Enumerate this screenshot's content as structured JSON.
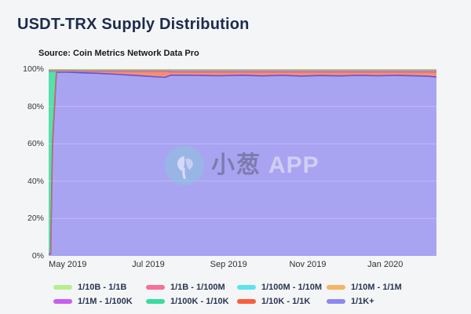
{
  "header": {
    "title": "USDT-TRX Supply Distribution",
    "source": "Source: Coin Metrics Network Data Pro"
  },
  "watermark": {
    "text_cn": "小葱",
    "text_en": "APP",
    "circle_color": "rgba(138,198,219,0.85)"
  },
  "legend": {
    "items": [
      {
        "label": "1/10B - 1/1B",
        "color": "#b9ed92",
        "row": 0,
        "col": 0
      },
      {
        "label": "1/1B - 1/100M",
        "color": "#f4719a",
        "row": 0,
        "col": 1
      },
      {
        "label": "1/100M - 1/10M",
        "color": "#5fe2ec",
        "row": 0,
        "col": 2
      },
      {
        "label": "1/10M - 1/1M",
        "color": "#f4b469",
        "row": 0,
        "col": 3
      },
      {
        "label": "1/1M - 1/100K",
        "color": "#c75ff0",
        "row": 1,
        "col": 0
      },
      {
        "label": "1/100K - 1/10K",
        "color": "#3bdba0",
        "row": 1,
        "col": 1
      },
      {
        "label": "1/10K - 1/1K",
        "color": "#f95e3f",
        "row": 1,
        "col": 2
      },
      {
        "label": "1/1K+",
        "color": "#8d88ee",
        "row": 1,
        "col": 3
      }
    ]
  },
  "chart_data": {
    "type": "area",
    "variant": "100%-stacked",
    "title": "USDT-TRX Supply Distribution",
    "xlabel": "",
    "ylabel": "",
    "ylim": [
      0,
      100
    ],
    "grid": "horizontal, 20% steps, faint",
    "legend_position": "bottom, 2 rows x 4 columns",
    "yticks": [
      "100%",
      "80%",
      "60%",
      "40%",
      "20%",
      "0%"
    ],
    "xticks": [
      {
        "label": "May 2019",
        "pos": 0.049
      },
      {
        "label": "Jul 2019",
        "pos": 0.257
      },
      {
        "label": "Sep 2019",
        "pos": 0.464
      },
      {
        "label": "Nov 2019",
        "pos": 0.668
      },
      {
        "label": "Jan 2020",
        "pos": 0.868
      }
    ],
    "x_axis_note": "x = fraction of plot width, spanning late Apr 2019 to mid Feb 2020",
    "x": [
      0,
      0.005,
      0.01,
      0.02,
      0.05,
      0.09,
      0.13,
      0.17,
      0.21,
      0.25,
      0.28,
      0.3,
      0.315,
      0.33,
      0.38,
      0.44,
      0.5,
      0.55,
      0.6,
      0.65,
      0.7,
      0.75,
      0.8,
      0.85,
      0.9,
      0.95,
      0.98,
      1
    ],
    "series_note": "percent of supply; listed bottom-to-top stacking order; columns normalized to 100%",
    "series": [
      {
        "name": "1/1K+",
        "fill": "#a9a4f1",
        "stroke": "#6153d6",
        "stroke_width": 1.6,
        "values": [
          1,
          1,
          60,
          98.7,
          98.8,
          98.5,
          98.2,
          97.8,
          97.3,
          96.8,
          96.3,
          96.1,
          97.5,
          97.5,
          97.4,
          97.2,
          97.5,
          97.1,
          97.4,
          97.0,
          97.3,
          97.1,
          97.4,
          97.2,
          97.4,
          97.1,
          96.9,
          96.5
        ]
      },
      {
        "name": "1/10K - 1/1K",
        "fill": "#f78e74",
        "stroke": "#ee6240",
        "stroke_width": 1.1,
        "values": [
          0.3,
          0.3,
          0.5,
          0.3,
          0.4,
          0.7,
          1.0,
          1.4,
          1.9,
          2.4,
          2.9,
          3.1,
          1.7,
          1.7,
          1.8,
          2.0,
          1.7,
          2.1,
          1.8,
          2.2,
          1.9,
          2.1,
          1.8,
          2.0,
          1.8,
          2.1,
          2.3,
          2.7
        ]
      },
      {
        "name": "1/100K - 1/10K",
        "fill": "#57dfac",
        "stroke": "#2bc894",
        "stroke_width": 1,
        "values": [
          97.2,
          97.2,
          38,
          0.15,
          0.1,
          0.1,
          0.1,
          0.1,
          0.1,
          0.1,
          0.1,
          0.1,
          0.1,
          0.1,
          0.1,
          0.1,
          0.1,
          0.1,
          0.1,
          0.1,
          0.1,
          0.1,
          0.1,
          0.1,
          0.1,
          0.1,
          0.1,
          0.1
        ]
      },
      {
        "name": "1/1M - 1/100K",
        "fill": "#d48bf2",
        "stroke": "#be5fea",
        "stroke_width": 1,
        "values": [
          0.4,
          0.4,
          0.4,
          0.15,
          0.15,
          0.15,
          0.15,
          0.15,
          0.15,
          0.15,
          0.15,
          0.15,
          0.15,
          0.15,
          0.15,
          0.15,
          0.15,
          0.15,
          0.15,
          0.15,
          0.15,
          0.15,
          0.15,
          0.15,
          0.15,
          0.15,
          0.15,
          0.15
        ]
      },
      {
        "name": "1/10M - 1/1M",
        "fill": "#f5be82",
        "stroke": "#efa14f",
        "stroke_width": 1,
        "values": [
          0.15,
          0.15,
          0.15,
          0.15,
          0.2,
          0.2,
          0.2,
          0.2,
          0.2,
          0.2,
          0.2,
          0.2,
          0.45,
          0.45,
          0.45,
          0.45,
          0.45,
          0.45,
          0.45,
          0.45,
          0.45,
          0.45,
          0.45,
          0.45,
          0.45,
          0.45,
          0.45,
          0.45
        ]
      },
      {
        "name": "1/100M - 1/10M",
        "fill": "#7de7ee",
        "stroke": "#45d4df",
        "stroke_width": 1,
        "values": [
          0.2,
          0.2,
          0.2,
          0.2,
          0.2,
          0.08,
          0.08,
          0.08,
          0.08,
          0.08,
          0.08,
          0.08,
          0.08,
          0.08,
          0.08,
          0.08,
          0.08,
          0.08,
          0.08,
          0.08,
          0.08,
          0.08,
          0.08,
          0.08,
          0.08,
          0.08,
          0.08,
          0.08
        ]
      },
      {
        "name": "1/1B - 1/100M",
        "fill": "#f78fb0",
        "stroke": "#f06292",
        "stroke_width": 1,
        "values": [
          0.06,
          0.06,
          0.06,
          0.06,
          0.06,
          0.06,
          0.06,
          0.06,
          0.06,
          0.06,
          0.06,
          0.06,
          0.06,
          0.06,
          0.06,
          0.06,
          0.06,
          0.06,
          0.06,
          0.06,
          0.06,
          0.06,
          0.06,
          0.06,
          0.06,
          0.06,
          0.06,
          0.06
        ]
      },
      {
        "name": "1/10B - 1/1B",
        "fill": "#c8ec9e",
        "stroke": "#9fcf6b",
        "stroke_width": 1.4,
        "values": [
          0.6,
          0.6,
          0.6,
          0.6,
          0.6,
          0.75,
          0.75,
          0.75,
          0.75,
          0.75,
          0.75,
          0.75,
          0.75,
          0.75,
          0.75,
          0.75,
          0.75,
          0.75,
          0.75,
          0.75,
          0.75,
          0.75,
          0.75,
          0.75,
          0.75,
          0.75,
          0.75,
          0.75
        ]
      }
    ]
  }
}
